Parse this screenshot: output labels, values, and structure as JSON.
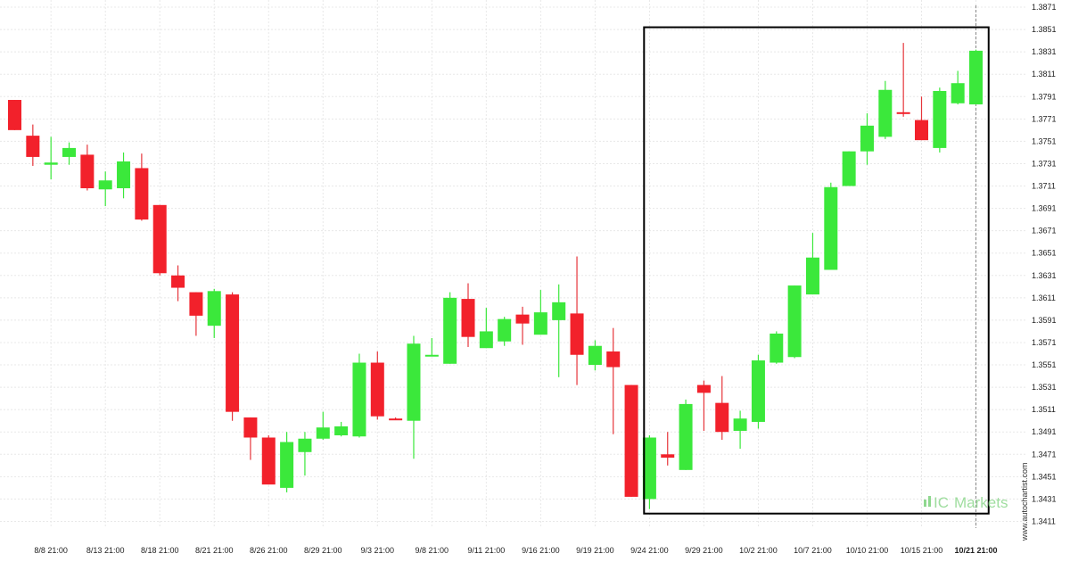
{
  "watermark": {
    "side_text": "www.autochartist.com",
    "brand_prefix": "IC",
    "brand_suffix": "Markets"
  },
  "colors": {
    "up": "#3BE83B",
    "down": "#F2212B",
    "wick": "#E6353B",
    "box": "#000000",
    "grid": "#E8E8E8",
    "current_line": "#888888",
    "watermark": "#8FD88F"
  },
  "chart_data": {
    "type": "candlestick",
    "ylim": [
      1.3405,
      1.3871
    ],
    "y_ticks": [
      "1.3871",
      "1.3851",
      "1.3831",
      "1.3811",
      "1.3791",
      "1.3771",
      "1.3751",
      "1.3731",
      "1.3711",
      "1.3691",
      "1.3671",
      "1.3651",
      "1.3631",
      "1.3611",
      "1.3591",
      "1.3571",
      "1.3551",
      "1.3531",
      "1.3511",
      "1.3491",
      "1.3471",
      "1.3451",
      "1.3431",
      "1.3411"
    ],
    "x_ticks": [
      {
        "label": "8/8 21:00",
        "index": 2
      },
      {
        "label": "8/13 21:00",
        "index": 5
      },
      {
        "label": "8/18 21:00",
        "index": 8
      },
      {
        "label": "8/21 21:00",
        "index": 11
      },
      {
        "label": "8/26 21:00",
        "index": 14
      },
      {
        "label": "8/29 21:00",
        "index": 17
      },
      {
        "label": "9/3 21:00",
        "index": 20
      },
      {
        "label": "9/8 21:00",
        "index": 23
      },
      {
        "label": "9/11 21:00",
        "index": 26
      },
      {
        "label": "9/16 21:00",
        "index": 29
      },
      {
        "label": "9/19 21:00",
        "index": 32
      },
      {
        "label": "9/24 21:00",
        "index": 35
      },
      {
        "label": "9/29 21:00",
        "index": 38
      },
      {
        "label": "10/2 21:00",
        "index": 41
      },
      {
        "label": "10/7 21:00",
        "index": 44
      },
      {
        "label": "10/10 21:00",
        "index": 47
      },
      {
        "label": "10/15 21:00",
        "index": 50
      },
      {
        "label": "10/21 21:00",
        "index": 53,
        "bold": true
      }
    ],
    "candles": [
      {
        "o": 1.3788,
        "h": 1.3788,
        "l": 1.3761,
        "c": 1.3761
      },
      {
        "o": 1.3756,
        "h": 1.3766,
        "l": 1.3729,
        "c": 1.3737
      },
      {
        "o": 1.373,
        "h": 1.3755,
        "l": 1.3717,
        "c": 1.3732
      },
      {
        "o": 1.3737,
        "h": 1.375,
        "l": 1.373,
        "c": 1.3745
      },
      {
        "o": 1.3739,
        "h": 1.3748,
        "l": 1.3707,
        "c": 1.3709
      },
      {
        "o": 1.3708,
        "h": 1.3724,
        "l": 1.3693,
        "c": 1.3716
      },
      {
        "o": 1.3709,
        "h": 1.3741,
        "l": 1.37,
        "c": 1.3733
      },
      {
        "o": 1.3727,
        "h": 1.374,
        "l": 1.368,
        "c": 1.3681
      },
      {
        "o": 1.3694,
        "h": 1.3694,
        "l": 1.3631,
        "c": 1.3633
      },
      {
        "o": 1.3631,
        "h": 1.364,
        "l": 1.3608,
        "c": 1.362
      },
      {
        "o": 1.3616,
        "h": 1.3616,
        "l": 1.3577,
        "c": 1.3595
      },
      {
        "o": 1.3586,
        "h": 1.3619,
        "l": 1.3575,
        "c": 1.3617
      },
      {
        "o": 1.3614,
        "h": 1.3616,
        "l": 1.3501,
        "c": 1.3509
      },
      {
        "o": 1.3504,
        "h": 1.3504,
        "l": 1.3466,
        "c": 1.3486
      },
      {
        "o": 1.3486,
        "h": 1.3488,
        "l": 1.3444,
        "c": 1.3444
      },
      {
        "o": 1.3441,
        "h": 1.3491,
        "l": 1.3437,
        "c": 1.3482
      },
      {
        "o": 1.3473,
        "h": 1.3491,
        "l": 1.3452,
        "c": 1.3485
      },
      {
        "o": 1.3485,
        "h": 1.3509,
        "l": 1.3484,
        "c": 1.3495
      },
      {
        "o": 1.3488,
        "h": 1.35,
        "l": 1.3487,
        "c": 1.3496
      },
      {
        "o": 1.3487,
        "h": 1.3561,
        "l": 1.3486,
        "c": 1.3553
      },
      {
        "o": 1.3553,
        "h": 1.3563,
        "l": 1.3502,
        "c": 1.3505
      },
      {
        "o": 1.3503,
        "h": 1.3504,
        "l": 1.3502,
        "c": 1.3502
      },
      {
        "o": 1.3501,
        "h": 1.3577,
        "l": 1.3467,
        "c": 1.357
      },
      {
        "o": 1.356,
        "h": 1.3575,
        "l": 1.3559,
        "c": 1.356
      },
      {
        "o": 1.3552,
        "h": 1.3616,
        "l": 1.3552,
        "c": 1.3611
      },
      {
        "o": 1.361,
        "h": 1.3624,
        "l": 1.3567,
        "c": 1.3576
      },
      {
        "o": 1.3566,
        "h": 1.3602,
        "l": 1.3566,
        "c": 1.3581
      },
      {
        "o": 1.3572,
        "h": 1.3594,
        "l": 1.3568,
        "c": 1.3592
      },
      {
        "o": 1.3596,
        "h": 1.3603,
        "l": 1.3569,
        "c": 1.3588
      },
      {
        "o": 1.3578,
        "h": 1.3618,
        "l": 1.3578,
        "c": 1.3598
      },
      {
        "o": 1.3591,
        "h": 1.3623,
        "l": 1.354,
        "c": 1.3607
      },
      {
        "o": 1.3597,
        "h": 1.3648,
        "l": 1.3533,
        "c": 1.356
      },
      {
        "o": 1.3551,
        "h": 1.3573,
        "l": 1.3546,
        "c": 1.3568
      },
      {
        "o": 1.3563,
        "h": 1.3584,
        "l": 1.3489,
        "c": 1.3549
      },
      {
        "o": 1.3533,
        "h": 1.3533,
        "l": 1.3433,
        "c": 1.3433
      },
      {
        "o": 1.3431,
        "h": 1.3488,
        "l": 1.3422,
        "c": 1.3486
      },
      {
        "o": 1.3471,
        "h": 1.3491,
        "l": 1.3461,
        "c": 1.3468
      },
      {
        "o": 1.3457,
        "h": 1.352,
        "l": 1.3457,
        "c": 1.3516
      },
      {
        "o": 1.3533,
        "h": 1.3537,
        "l": 1.3492,
        "c": 1.3526
      },
      {
        "o": 1.3517,
        "h": 1.3541,
        "l": 1.3484,
        "c": 1.3491
      },
      {
        "o": 1.3492,
        "h": 1.351,
        "l": 1.3476,
        "c": 1.3503
      },
      {
        "o": 1.35,
        "h": 1.356,
        "l": 1.3494,
        "c": 1.3555
      },
      {
        "o": 1.3553,
        "h": 1.3581,
        "l": 1.3552,
        "c": 1.3579
      },
      {
        "o": 1.3558,
        "h": 1.3622,
        "l": 1.3557,
        "c": 1.3622
      },
      {
        "o": 1.3614,
        "h": 1.3669,
        "l": 1.3614,
        "c": 1.3647
      },
      {
        "o": 1.3636,
        "h": 1.3714,
        "l": 1.3636,
        "c": 1.371
      },
      {
        "o": 1.3711,
        "h": 1.3742,
        "l": 1.3711,
        "c": 1.3742
      },
      {
        "o": 1.3742,
        "h": 1.3776,
        "l": 1.373,
        "c": 1.3765
      },
      {
        "o": 1.3755,
        "h": 1.3805,
        "l": 1.3753,
        "c": 1.3797
      },
      {
        "o": 1.3777,
        "h": 1.3839,
        "l": 1.3773,
        "c": 1.3776
      },
      {
        "o": 1.377,
        "h": 1.3791,
        "l": 1.3752,
        "c": 1.3752
      },
      {
        "o": 1.3745,
        "h": 1.3799,
        "l": 1.3741,
        "c": 1.3796
      },
      {
        "o": 1.3785,
        "h": 1.3814,
        "l": 1.3784,
        "c": 1.3803
      },
      {
        "o": 1.3784,
        "h": 1.3833,
        "l": 1.3784,
        "c": 1.3832
      }
    ],
    "highlight_box": {
      "start_index": 34.7,
      "end_index": 53.7,
      "y_top": 1.3853,
      "y_bottom": 1.3418
    },
    "current_index": 53,
    "grid": true
  }
}
